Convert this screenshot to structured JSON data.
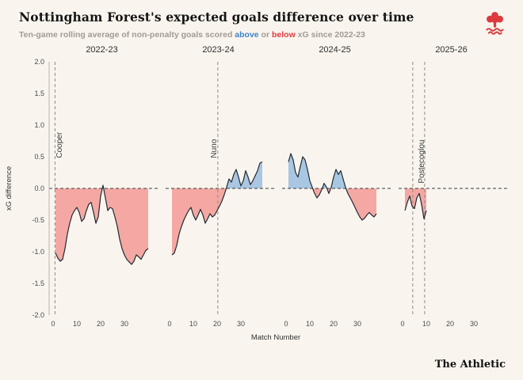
{
  "page": {
    "background": "#f9f5ee"
  },
  "header": {
    "title": "Nottingham Forest's expected goals difference over time",
    "subtitle": {
      "prefix": "Ten-game rolling average of non-penalty goals scored ",
      "above_word": "above",
      "mid": " or ",
      "below_word": "below",
      "suffix": " xG since 2022-23"
    },
    "colors": {
      "above": "#3d85c8",
      "below": "#e0393e",
      "crest": "#dd3a3f"
    }
  },
  "footer": {
    "brand": "The Athletic"
  },
  "chart_data": {
    "type": "area",
    "title": "Nottingham Forest's expected goals difference over time",
    "subtitle": "Ten-game rolling average of non-penalty goals scored above or below xG since 2022-23",
    "xlabel": "Match Number",
    "ylabel": "xG difference",
    "ylim": [
      -2.0,
      2.0
    ],
    "yticks": [
      2.0,
      1.5,
      1.0,
      0.5,
      0.0,
      -0.5,
      -1.0,
      -1.5,
      -2.0
    ],
    "xticks": [
      0,
      10,
      20,
      30
    ],
    "grid": false,
    "legend_position": "none",
    "line_color": "#1f2a33",
    "fill_above_color": "#a9c6e2",
    "fill_below_color": "#f5a8a3",
    "zero_line_dashed": true,
    "panels": [
      {
        "label": "2022-23",
        "x_start": 1,
        "y": [
          -1.02,
          -1.1,
          -1.15,
          -1.12,
          -0.95,
          -0.72,
          -0.55,
          -0.42,
          -0.35,
          -0.3,
          -0.38,
          -0.52,
          -0.48,
          -0.35,
          -0.25,
          -0.22,
          -0.38,
          -0.55,
          -0.45,
          -0.12,
          0.05,
          -0.15,
          -0.35,
          -0.3,
          -0.32,
          -0.45,
          -0.6,
          -0.8,
          -0.95,
          -1.05,
          -1.12,
          -1.16,
          -1.2,
          -1.15,
          -1.05,
          -1.08,
          -1.12,
          -1.05,
          -0.98,
          -0.95
        ],
        "vlines": [
          0.8
        ],
        "manager_labels": [
          {
            "name": "Cooper",
            "x": 3.6,
            "from_v": 0.48
          }
        ]
      },
      {
        "label": "2023-24",
        "x_start": 1,
        "y": [
          -1.05,
          -1.02,
          -0.9,
          -0.72,
          -0.6,
          -0.5,
          -0.42,
          -0.35,
          -0.3,
          -0.42,
          -0.5,
          -0.42,
          -0.33,
          -0.42,
          -0.55,
          -0.48,
          -0.4,
          -0.45,
          -0.42,
          -0.35,
          -0.28,
          -0.2,
          -0.1,
          0.02,
          0.15,
          0.1,
          0.22,
          0.3,
          0.18,
          0.04,
          0.12,
          0.28,
          0.18,
          0.06,
          0.12,
          0.2,
          0.28,
          0.4,
          0.42
        ],
        "vlines": [
          20.3
        ],
        "manager_labels": [
          {
            "name": "Nuno",
            "x": 19.6,
            "from_v": 0.48
          }
        ]
      },
      {
        "label": "2024-25",
        "x_start": 1,
        "y": [
          0.42,
          0.55,
          0.45,
          0.25,
          0.18,
          0.35,
          0.5,
          0.45,
          0.3,
          0.12,
          0.02,
          -0.08,
          -0.15,
          -0.1,
          -0.02,
          0.08,
          0.02,
          -0.08,
          0.02,
          0.18,
          0.3,
          0.22,
          0.28,
          0.15,
          0.02,
          -0.08,
          -0.15,
          -0.22,
          -0.3,
          -0.38,
          -0.45,
          -0.5,
          -0.47,
          -0.42,
          -0.38,
          -0.42,
          -0.45,
          -0.4
        ],
        "vlines": [],
        "manager_labels": []
      },
      {
        "label": "2025-26",
        "x_start": 1,
        "y": [
          -0.35,
          -0.22,
          -0.12,
          -0.28,
          -0.32,
          -0.15,
          -0.08,
          -0.25,
          -0.48,
          -0.35
        ],
        "vlines": [
          4.3,
          9.3
        ],
        "manager_labels": [
          {
            "name": "Postecoglou",
            "x": 9.0,
            "from_v": 0.08
          }
        ]
      }
    ]
  }
}
